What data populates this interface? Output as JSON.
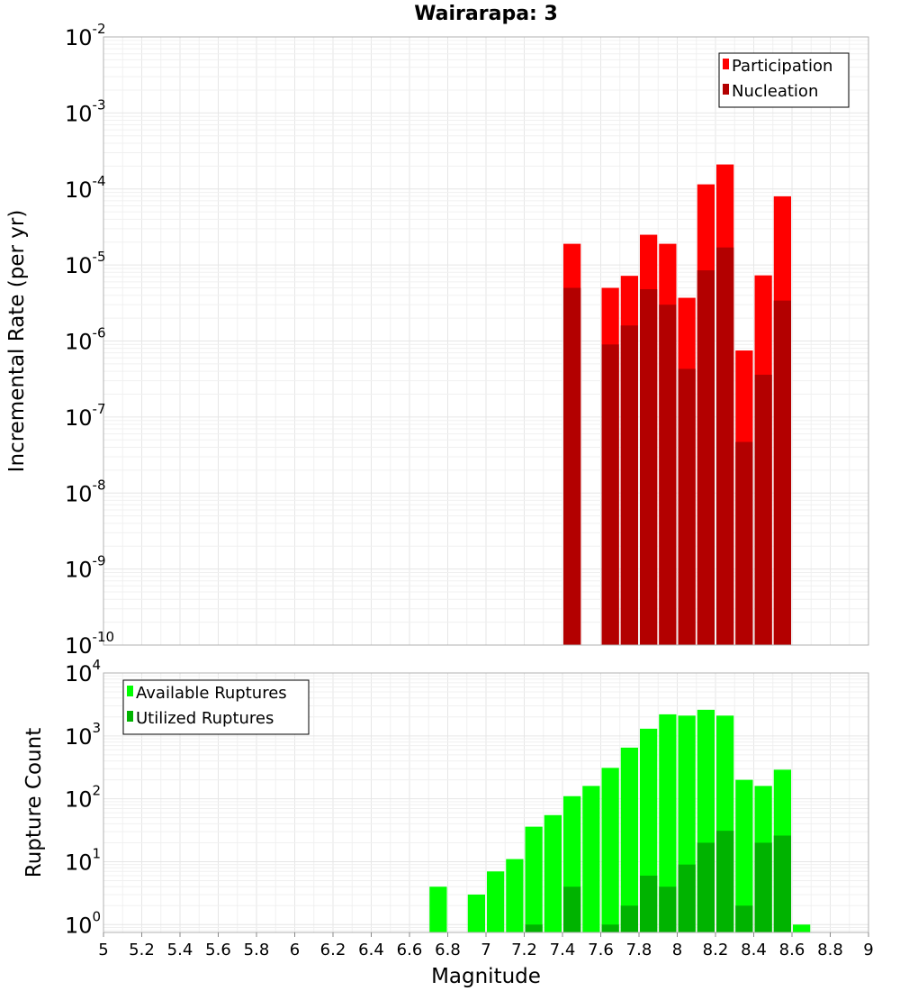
{
  "chart_data": [
    {
      "type": "bar",
      "title": "Wairarapa: 3",
      "xlabel": "",
      "ylabel": "Incremental Rate (per yr)",
      "yscale": "log",
      "xlim": [
        5,
        9
      ],
      "ylim": [
        1e-10,
        0.01
      ],
      "ytick_exponents": [
        "-2",
        "-3",
        "-4",
        "-5",
        "-6",
        "-7",
        "-8",
        "-9",
        "-10"
      ],
      "legend_position": "top-right",
      "colors": {
        "Participation": "#ff0000",
        "Nucleation": "#b30000"
      },
      "x": [
        7.45,
        7.65,
        7.75,
        7.85,
        7.95,
        8.05,
        8.15,
        8.25,
        8.35,
        8.45,
        8.55
      ],
      "series": [
        {
          "name": "Participation",
          "values": [
            1.9e-05,
            5e-06,
            7.2e-06,
            2.5e-05,
            1.9e-05,
            3.7e-06,
            0.000115,
            0.00021,
            7.5e-07,
            7.3e-06,
            8e-05
          ]
        },
        {
          "name": "Nucleation",
          "values": [
            5e-06,
            9e-07,
            1.6e-06,
            4.8e-06,
            3e-06,
            4.3e-07,
            8.5e-06,
            1.7e-05,
            4.7e-08,
            3.6e-07,
            3.4e-06
          ]
        }
      ]
    },
    {
      "type": "bar",
      "xlabel": "Magnitude",
      "ylabel": "Rupture Count",
      "yscale": "log",
      "xlim": [
        5,
        9
      ],
      "ylim": [
        0.75,
        10000
      ],
      "ytick_exponents": [
        "4",
        "3",
        "2",
        "1",
        "0"
      ],
      "xticks": [
        "5",
        "5.2",
        "5.4",
        "5.6",
        "5.8",
        "6",
        "6.2",
        "6.4",
        "6.6",
        "6.8",
        "7",
        "7.2",
        "7.4",
        "7.6",
        "7.8",
        "8",
        "8.2",
        "8.4",
        "8.6",
        "8.8",
        "9"
      ],
      "legend_position": "top-left",
      "colors": {
        "Available Ruptures": "#00ff00",
        "Utilized Ruptures": "#00b300"
      },
      "x": [
        6.75,
        6.95,
        7.05,
        7.15,
        7.25,
        7.35,
        7.45,
        7.55,
        7.65,
        7.75,
        7.85,
        7.95,
        8.05,
        8.15,
        8.25,
        8.35,
        8.45,
        8.55,
        8.65
      ],
      "series": [
        {
          "name": "Available Ruptures",
          "values": [
            4,
            3,
            7,
            11,
            36,
            55,
            110,
            160,
            310,
            650,
            1300,
            2200,
            2100,
            2600,
            2100,
            200,
            160,
            290,
            1
          ]
        },
        {
          "name": "Utilized Ruptures",
          "values": [
            null,
            null,
            null,
            null,
            1,
            null,
            4,
            null,
            1,
            2,
            6,
            4,
            9,
            20,
            31,
            2,
            20,
            26,
            null
          ]
        }
      ]
    }
  ]
}
